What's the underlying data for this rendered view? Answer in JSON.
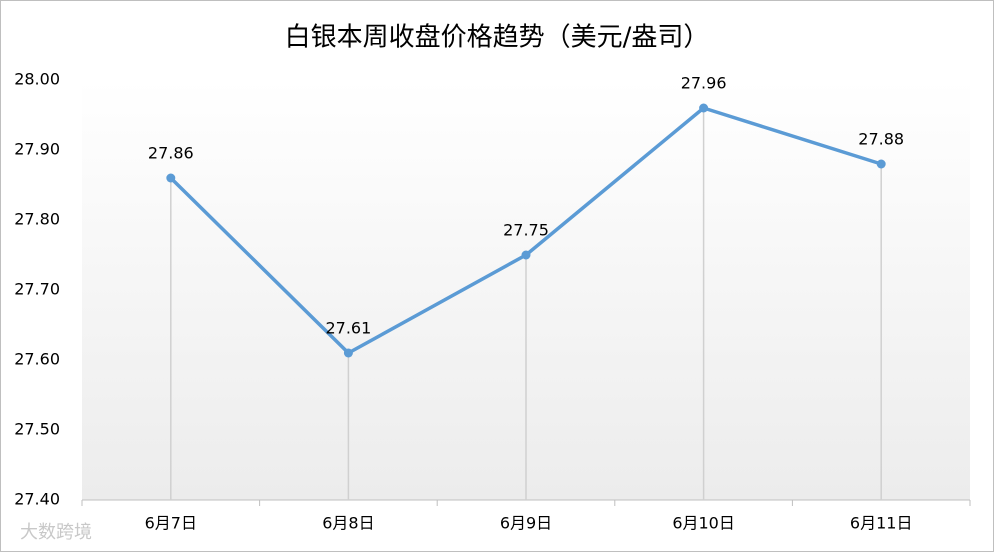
{
  "chart_data": {
    "type": "line",
    "title": "白银本周收盘价格趋势（美元/盎司）",
    "categories": [
      "6月7日",
      "6月8日",
      "6月9日",
      "6月10日",
      "6月11日"
    ],
    "values": [
      27.86,
      27.61,
      27.75,
      27.96,
      27.88
    ],
    "color": "#5b9bd5",
    "ylim": [
      27.4,
      28.0
    ],
    "yticks": [
      {
        "value": 27.4,
        "label": "27.40"
      },
      {
        "value": 27.5,
        "label": "27.50"
      },
      {
        "value": 27.6,
        "label": "27.60"
      },
      {
        "value": 27.7,
        "label": "27.70"
      },
      {
        "value": 27.8,
        "label": "27.80"
      },
      {
        "value": 27.9,
        "label": "27.90"
      },
      {
        "value": 28.0,
        "label": "28.00"
      }
    ],
    "grid": false,
    "drop_lines": true,
    "data_labels": true,
    "watermark": "大数跨境"
  }
}
